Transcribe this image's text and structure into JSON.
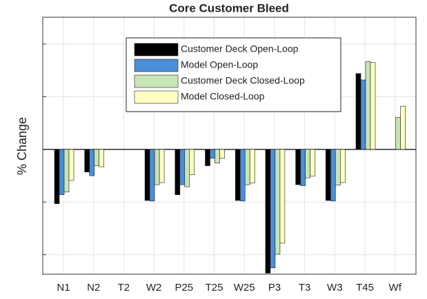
{
  "chart_data": {
    "type": "bar",
    "title": "Core Customer Bleed",
    "ylabel": "% Change",
    "categories": [
      "N1",
      "N2",
      "T2",
      "W2",
      "P25",
      "T25",
      "W25",
      "P3",
      "T3",
      "W3",
      "T45",
      "Wf"
    ],
    "series": [
      {
        "name": "Customer Deck Open-Loop",
        "color": "#000000",
        "values": [
          -1.03,
          -0.43,
          0,
          -0.97,
          -0.86,
          -0.31,
          -0.97,
          -2.35,
          -0.67,
          -0.97,
          1.44,
          0
        ]
      },
      {
        "name": "Model Open-Loop",
        "color": "#4a8fd8",
        "values": [
          -0.86,
          -0.5,
          0,
          -0.98,
          -0.67,
          -0.17,
          -0.98,
          -2.25,
          -0.69,
          -0.98,
          1.32,
          0
        ]
      },
      {
        "name": "Customer Deck Closed-Loop",
        "color": "#c8e6b5",
        "values": [
          -0.81,
          -0.31,
          0,
          -0.67,
          -0.71,
          -0.26,
          -0.67,
          -1.99,
          -0.54,
          -0.68,
          1.67,
          0.61
        ]
      },
      {
        "name": "Model Closed-Loop",
        "color": "#ffffc2",
        "values": [
          -0.59,
          -0.33,
          0,
          -0.63,
          -0.48,
          -0.17,
          -0.64,
          -1.78,
          -0.51,
          -0.63,
          1.65,
          0.82
        ]
      }
    ],
    "ylim": [
      -2.37,
      2.51
    ],
    "yticks": [
      -2,
      -1,
      0,
      1,
      2
    ],
    "grid": true
  }
}
